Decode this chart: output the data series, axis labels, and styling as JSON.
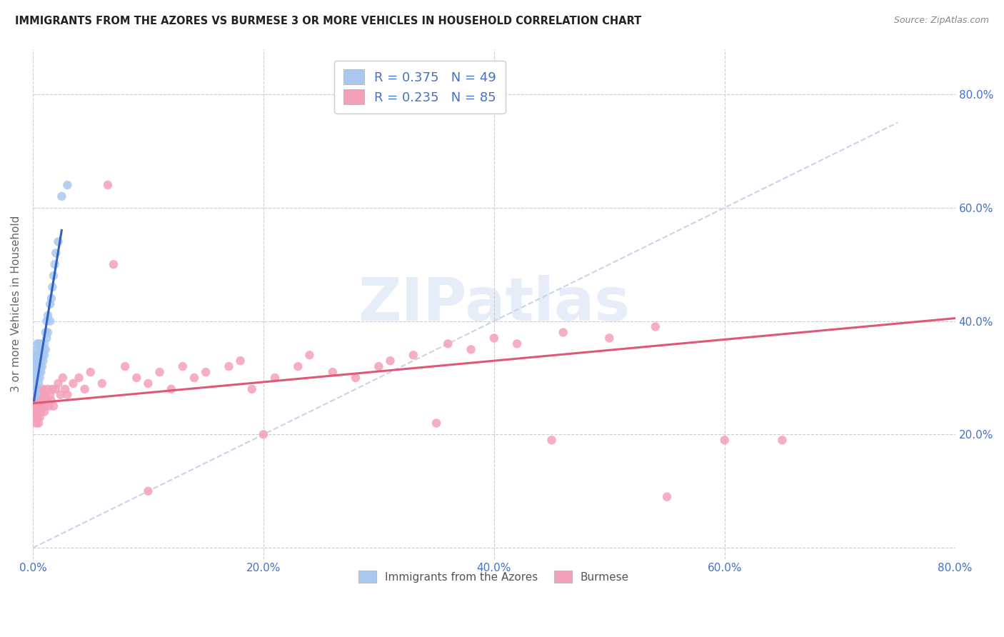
{
  "title": "IMMIGRANTS FROM THE AZORES VS BURMESE 3 OR MORE VEHICLES IN HOUSEHOLD CORRELATION CHART",
  "source": "Source: ZipAtlas.com",
  "ylabel": "3 or more Vehicles in Household",
  "xlim": [
    0.0,
    0.8
  ],
  "ylim": [
    -0.02,
    0.88
  ],
  "xticks": [
    0.0,
    0.2,
    0.4,
    0.6,
    0.8
  ],
  "yticks": [
    0.0,
    0.2,
    0.4,
    0.6,
    0.8
  ],
  "xticklabels": [
    "0.0%",
    "20.0%",
    "40.0%",
    "60.0%",
    "80.0%"
  ],
  "left_yticklabels": [
    "",
    "",
    "",
    "",
    ""
  ],
  "right_yticklabels": [
    "20.0%",
    "40.0%",
    "60.0%",
    "80.0%"
  ],
  "right_yticks": [
    0.2,
    0.4,
    0.6,
    0.8
  ],
  "azores_color": "#a8c8f0",
  "burmese_color": "#f4a0b8",
  "azores_line_color": "#3060c0",
  "burmese_line_color": "#e05878",
  "diagonal_color": "#c8d4e8",
  "R_azores": 0.375,
  "N_azores": 49,
  "R_burmese": 0.235,
  "N_burmese": 85,
  "legend_label_azores": "Immigrants from the Azores",
  "legend_label_burmese": "Burmese",
  "watermark": "ZIPatlas",
  "tick_color": "#4472c4",
  "azores_scatter": {
    "x": [
      0.001,
      0.001,
      0.001,
      0.001,
      0.002,
      0.002,
      0.002,
      0.002,
      0.002,
      0.003,
      0.003,
      0.003,
      0.003,
      0.004,
      0.004,
      0.004,
      0.004,
      0.005,
      0.005,
      0.005,
      0.005,
      0.006,
      0.006,
      0.006,
      0.007,
      0.007,
      0.007,
      0.008,
      0.008,
      0.009,
      0.009,
      0.01,
      0.01,
      0.011,
      0.011,
      0.012,
      0.012,
      0.013,
      0.013,
      0.015,
      0.015,
      0.016,
      0.017,
      0.018,
      0.019,
      0.02,
      0.022,
      0.025,
      0.03
    ],
    "y": [
      0.28,
      0.3,
      0.31,
      0.33,
      0.28,
      0.3,
      0.32,
      0.34,
      0.29,
      0.31,
      0.33,
      0.35,
      0.27,
      0.3,
      0.32,
      0.34,
      0.36,
      0.29,
      0.31,
      0.33,
      0.36,
      0.3,
      0.32,
      0.35,
      0.31,
      0.33,
      0.36,
      0.32,
      0.34,
      0.33,
      0.35,
      0.34,
      0.36,
      0.35,
      0.38,
      0.37,
      0.4,
      0.38,
      0.41,
      0.4,
      0.43,
      0.44,
      0.46,
      0.48,
      0.5,
      0.52,
      0.54,
      0.62,
      0.64
    ]
  },
  "azores_line": {
    "x0": 0.001,
    "x1": 0.025,
    "y0": 0.26,
    "y1": 0.56
  },
  "burmese_line": {
    "x0": 0.0,
    "x1": 0.8,
    "y0": 0.255,
    "y1": 0.405
  },
  "diagonal_line": {
    "x0": 0.0,
    "x1": 0.75,
    "y0": 0.0,
    "y1": 0.75
  },
  "burmese_scatter": {
    "x": [
      0.001,
      0.001,
      0.001,
      0.002,
      0.002,
      0.002,
      0.002,
      0.003,
      0.003,
      0.003,
      0.003,
      0.004,
      0.004,
      0.004,
      0.004,
      0.005,
      0.005,
      0.005,
      0.005,
      0.006,
      0.006,
      0.006,
      0.007,
      0.007,
      0.007,
      0.008,
      0.008,
      0.009,
      0.009,
      0.01,
      0.01,
      0.011,
      0.012,
      0.013,
      0.014,
      0.015,
      0.016,
      0.017,
      0.018,
      0.02,
      0.022,
      0.024,
      0.026,
      0.028,
      0.03,
      0.035,
      0.04,
      0.045,
      0.05,
      0.06,
      0.065,
      0.07,
      0.08,
      0.09,
      0.1,
      0.11,
      0.12,
      0.13,
      0.14,
      0.15,
      0.17,
      0.18,
      0.19,
      0.21,
      0.23,
      0.24,
      0.26,
      0.28,
      0.3,
      0.31,
      0.33,
      0.36,
      0.38,
      0.4,
      0.42,
      0.46,
      0.5,
      0.54,
      0.6,
      0.65,
      0.1,
      0.2,
      0.35,
      0.45,
      0.55
    ],
    "y": [
      0.25,
      0.27,
      0.24,
      0.26,
      0.28,
      0.23,
      0.25,
      0.27,
      0.24,
      0.26,
      0.22,
      0.28,
      0.25,
      0.27,
      0.23,
      0.26,
      0.28,
      0.24,
      0.22,
      0.27,
      0.25,
      0.23,
      0.28,
      0.26,
      0.24,
      0.27,
      0.25,
      0.26,
      0.28,
      0.25,
      0.24,
      0.27,
      0.26,
      0.28,
      0.25,
      0.27,
      0.26,
      0.28,
      0.25,
      0.28,
      0.29,
      0.27,
      0.3,
      0.28,
      0.27,
      0.29,
      0.3,
      0.28,
      0.31,
      0.29,
      0.64,
      0.5,
      0.32,
      0.3,
      0.29,
      0.31,
      0.28,
      0.32,
      0.3,
      0.31,
      0.32,
      0.33,
      0.28,
      0.3,
      0.32,
      0.34,
      0.31,
      0.3,
      0.32,
      0.33,
      0.34,
      0.36,
      0.35,
      0.37,
      0.36,
      0.38,
      0.37,
      0.39,
      0.19,
      0.19,
      0.1,
      0.2,
      0.22,
      0.19,
      0.09
    ]
  }
}
